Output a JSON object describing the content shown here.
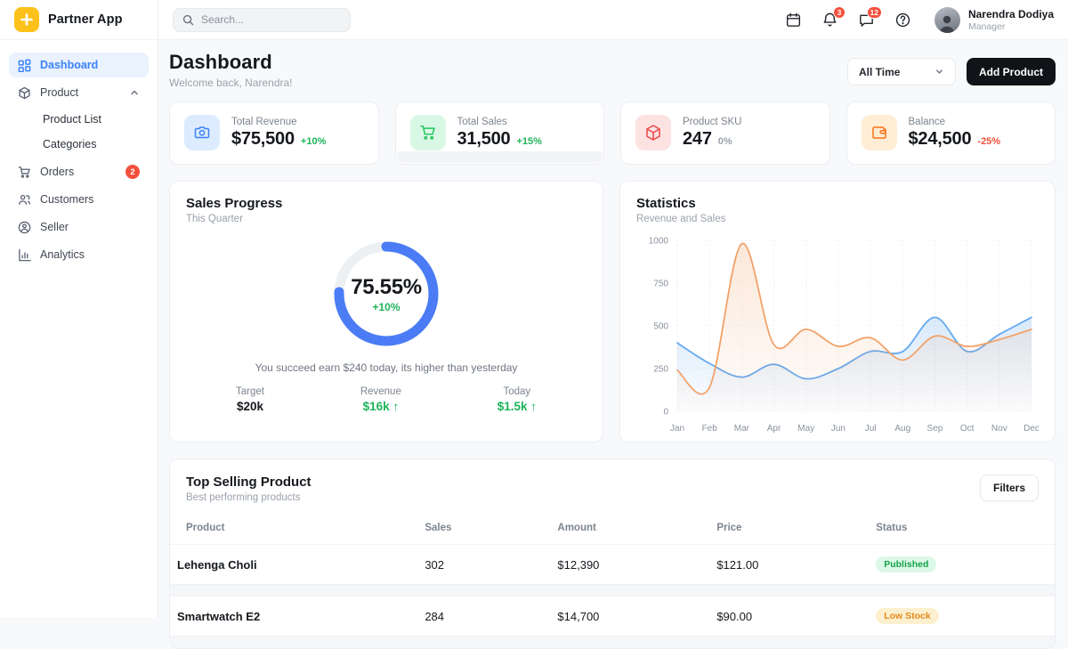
{
  "app": {
    "name": "Partner App"
  },
  "topbar": {
    "search_placeholder": "Search...",
    "notif_badge": "3",
    "message_badge": "12",
    "user": {
      "name": "Narendra Dodiya",
      "role": "Manager"
    }
  },
  "sidebar": {
    "items": [
      {
        "label": "Dashboard"
      },
      {
        "label": "Product"
      },
      {
        "label": "Product List"
      },
      {
        "label": "Categories"
      },
      {
        "label": "Orders",
        "badge": "2"
      },
      {
        "label": "Customers"
      },
      {
        "label": "Seller"
      },
      {
        "label": "Analytics"
      }
    ]
  },
  "page": {
    "title": "Dashboard",
    "subtitle": "Welcome back, Narendra!",
    "time_filter": "All Time",
    "add_product_label": "Add Product"
  },
  "kpis": [
    {
      "label": "Total Revenue",
      "value": "$75,500",
      "delta": "+10%",
      "delta_color": "#1db45a",
      "icon": "camera-icon",
      "icon_color": "#3b82f6",
      "icon_bg": "#dcebfe"
    },
    {
      "label": "Total Sales",
      "value": "31,500",
      "delta": "+15%",
      "delta_color": "#1db45a",
      "icon": "cart-icon",
      "icon_color": "#22c55e",
      "icon_bg": "#d9f7e5"
    },
    {
      "label": "Product SKU",
      "value": "247",
      "delta": "0%",
      "delta_color": "#9aa1ab",
      "icon": "package-icon",
      "icon_color": "#ef4444",
      "icon_bg": "#fde2e2"
    },
    {
      "label": "Balance",
      "value": "$24,500",
      "delta": "-25%",
      "delta_color": "#f4503d",
      "icon": "wallet-icon",
      "icon_color": "#f97316",
      "icon_bg": "#ffedd6"
    }
  ],
  "sales_progress": {
    "title": "Sales Progress",
    "subtitle": "This Quarter",
    "percent": 75.55,
    "percent_label": "75.55%",
    "delta": "+10%",
    "ring_color": "#4b7cf5",
    "track_color": "#edf0f3",
    "caption": "You succeed earn $240 today, its higher than yesterday",
    "stats": [
      {
        "label": "Target",
        "value": "$20k",
        "color": "#15181d"
      },
      {
        "label": "Revenue",
        "value": "$16k ↑",
        "color": "#1db45a"
      },
      {
        "label": "Today",
        "value": "$1.5k ↑",
        "color": "#1db45a"
      }
    ]
  },
  "chart_data": {
    "type": "area",
    "title": "Statistics",
    "subtitle": "Revenue and Sales",
    "x": [
      "Jan",
      "Feb",
      "Mar",
      "Apr",
      "May",
      "Jun",
      "Jul",
      "Aug",
      "Sep",
      "Oct",
      "Nov",
      "Dec"
    ],
    "series": [
      {
        "name": "Sales",
        "color": "#64a9ef",
        "values": [
          400,
          280,
          200,
          275,
          190,
          250,
          350,
          350,
          550,
          350,
          450,
          550
        ]
      },
      {
        "name": "Revenue",
        "color": "#f2a269",
        "values": [
          240,
          140,
          980,
          390,
          480,
          380,
          430,
          300,
          440,
          380,
          420,
          480
        ]
      }
    ],
    "ylim": [
      0,
      1000
    ],
    "yticks": [
      0,
      250,
      500,
      750,
      1000
    ],
    "grid": "dotted",
    "legend": "none"
  },
  "table": {
    "title": "Top Selling Product",
    "subtitle": "Best performing products",
    "filters_label": "Filters",
    "columns": [
      "Product",
      "Sales",
      "Amount",
      "Price",
      "Status"
    ],
    "rows": [
      {
        "product": "Lehenga Choli",
        "sales": "302",
        "amount": "$12,390",
        "price": "$121.00",
        "status": "Published",
        "status_color": "#16a34a",
        "status_bg": "#dcf8e7"
      },
      {
        "product": "Smartwatch E2",
        "sales": "284",
        "amount": "$14,700",
        "price": "$90.00",
        "status": "Low Stock",
        "status_color": "#e28a1d",
        "status_bg": "#fdf0cf"
      }
    ]
  }
}
